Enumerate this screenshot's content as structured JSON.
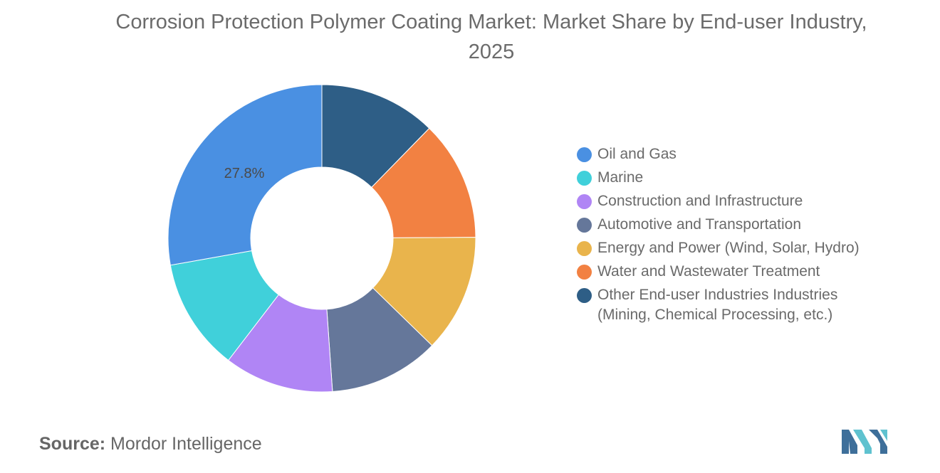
{
  "title": "Corrosion Protection Polymer Coating Market: Market Share by End-user Industry, 2025",
  "source": {
    "prefix": "Source:",
    "text": "Mordor Intelligence"
  },
  "chart_data": {
    "type": "pie",
    "variant": "donut",
    "title": "Corrosion Protection Polymer Coating Market: Market Share by End-user Industry, 2025",
    "legend_position": "right",
    "unit": "%",
    "categories": [
      "Oil and Gas",
      "Marine",
      "Construction and Infrastructure",
      "Automotive and Transportation",
      "Energy and Power (Wind, Solar, Hydro)",
      "Water and Wastewater Treatment",
      "Other End-user Industries Industries (Mining, Chemical Processing, etc.)"
    ],
    "values": [
      27.8,
      11.8,
      11.5,
      11.6,
      12.4,
      12.6,
      12.3
    ],
    "colors": [
      "#4a90e2",
      "#40d0da",
      "#b085f5",
      "#65779a",
      "#e9b44c",
      "#f28142",
      "#2e5e86"
    ],
    "data_labels": [
      "27.8%",
      "",
      "",
      "",
      "",
      "",
      ""
    ]
  },
  "legend": {
    "items": [
      {
        "label": "Oil and Gas",
        "color": "#4a90e2"
      },
      {
        "label": "Marine",
        "color": "#40d0da"
      },
      {
        "label": "Construction and Infrastructure",
        "color": "#b085f5"
      },
      {
        "label": "Automotive and Transportation",
        "color": "#65779a"
      },
      {
        "label": "Energy and Power (Wind, Solar, Hydro)",
        "color": "#e9b44c"
      },
      {
        "label": "Water and Wastewater Treatment",
        "color": "#f28142"
      },
      {
        "label": "Other End-user Industries Industries\n(Mining, Chemical Processing, etc.)",
        "color": "#2e5e86"
      }
    ]
  },
  "logo": {
    "icon": "mordor-intelligence-logo",
    "colors": [
      "#3e6f9a",
      "#5fc2cf"
    ]
  }
}
